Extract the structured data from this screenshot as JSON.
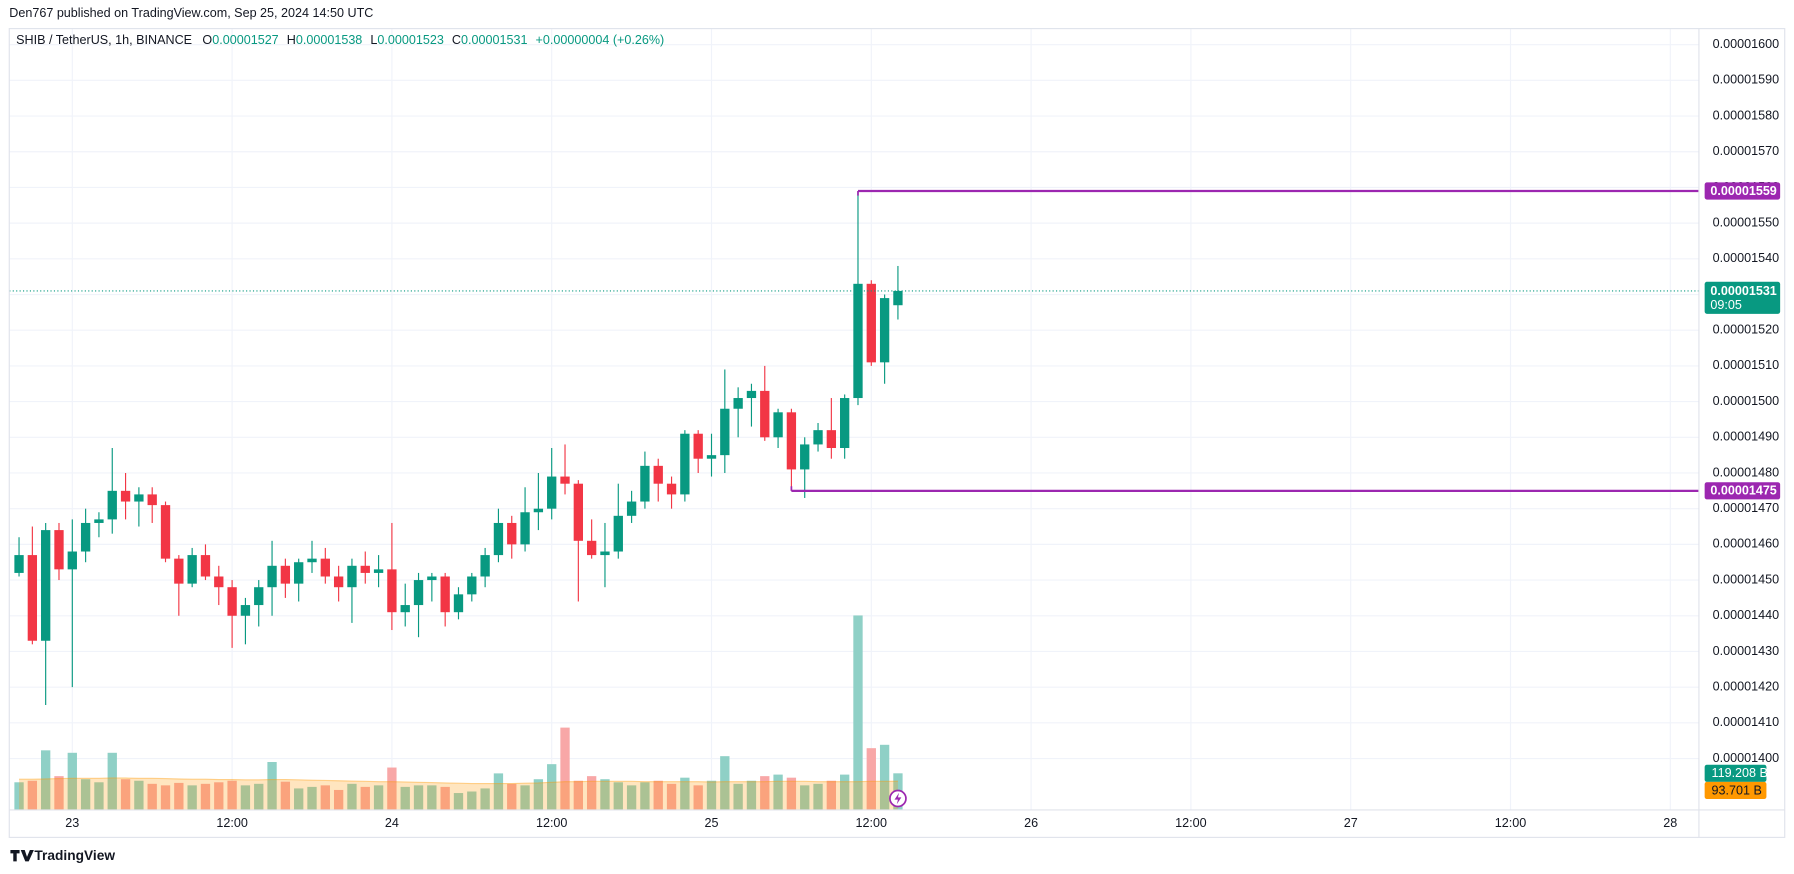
{
  "header": {
    "published": "Den767 published on TradingView.com, Sep 25, 2024 14:50 UTC",
    "symbol": "SHIB / TetherUS, 1h, BINANCE",
    "ohlc_labels": [
      "O",
      "H",
      "L",
      "C"
    ],
    "change": "+0.00000004 (+0.26%)"
  },
  "chart_data": {
    "type": "candlestick",
    "up_color": "#089981",
    "down_color": "#f23645",
    "grid": true,
    "x": [
      "2024-09-22T20:00Z",
      "2024-09-22T21:00Z",
      "2024-09-22T22:00Z",
      "2024-09-22T23:00Z",
      "2024-09-23T00:00Z",
      "2024-09-23T01:00Z",
      "2024-09-23T02:00Z",
      "2024-09-23T03:00Z",
      "2024-09-23T04:00Z",
      "2024-09-23T05:00Z",
      "2024-09-23T06:00Z",
      "2024-09-23T07:00Z",
      "2024-09-23T08:00Z",
      "2024-09-23T09:00Z",
      "2024-09-23T10:00Z",
      "2024-09-23T11:00Z",
      "2024-09-23T12:00Z",
      "2024-09-23T13:00Z",
      "2024-09-23T14:00Z",
      "2024-09-23T15:00Z",
      "2024-09-23T16:00Z",
      "2024-09-23T17:00Z",
      "2024-09-23T18:00Z",
      "2024-09-23T19:00Z",
      "2024-09-23T20:00Z",
      "2024-09-23T21:00Z",
      "2024-09-23T22:00Z",
      "2024-09-23T23:00Z",
      "2024-09-24T00:00Z",
      "2024-09-24T01:00Z",
      "2024-09-24T02:00Z",
      "2024-09-24T03:00Z",
      "2024-09-24T04:00Z",
      "2024-09-24T05:00Z",
      "2024-09-24T06:00Z",
      "2024-09-24T07:00Z",
      "2024-09-24T08:00Z",
      "2024-09-24T09:00Z",
      "2024-09-24T10:00Z",
      "2024-09-24T11:00Z",
      "2024-09-24T12:00Z",
      "2024-09-24T13:00Z",
      "2024-09-24T14:00Z",
      "2024-09-24T15:00Z",
      "2024-09-24T16:00Z",
      "2024-09-24T17:00Z",
      "2024-09-24T18:00Z",
      "2024-09-24T19:00Z",
      "2024-09-24T20:00Z",
      "2024-09-24T21:00Z",
      "2024-09-24T22:00Z",
      "2024-09-24T23:00Z",
      "2024-09-25T00:00Z",
      "2024-09-25T01:00Z",
      "2024-09-25T02:00Z",
      "2024-09-25T03:00Z",
      "2024-09-25T04:00Z",
      "2024-09-25T05:00Z",
      "2024-09-25T06:00Z",
      "2024-09-25T07:00Z",
      "2024-09-25T08:00Z",
      "2024-09-25T09:00Z",
      "2024-09-25T10:00Z",
      "2024-09-25T11:00Z",
      "2024-09-25T12:00Z",
      "2024-09-25T13:00Z",
      "2024-09-25T14:00Z"
    ],
    "open": [
      1.452e-05,
      1.457e-05,
      1.433e-05,
      1.464e-05,
      1.453e-05,
      1.458e-05,
      1.466e-05,
      1.467e-05,
      1.475e-05,
      1.472e-05,
      1.474e-05,
      1.471e-05,
      1.456e-05,
      1.449e-05,
      1.457e-05,
      1.451e-05,
      1.448e-05,
      1.44e-05,
      1.443e-05,
      1.448e-05,
      1.454e-05,
      1.449e-05,
      1.455e-05,
      1.456e-05,
      1.451e-05,
      1.448e-05,
      1.454e-05,
      1.452e-05,
      1.453e-05,
      1.441e-05,
      1.443e-05,
      1.45e-05,
      1.451e-05,
      1.441e-05,
      1.446e-05,
      1.451e-05,
      1.457e-05,
      1.466e-05,
      1.46e-05,
      1.469e-05,
      1.47e-05,
      1.479e-05,
      1.477e-05,
      1.461e-05,
      1.457e-05,
      1.458e-05,
      1.468e-05,
      1.472e-05,
      1.482e-05,
      1.477e-05,
      1.474e-05,
      1.491e-05,
      1.484e-05,
      1.485e-05,
      1.498e-05,
      1.501e-05,
      1.503e-05,
      1.49e-05,
      1.497e-05,
      1.481e-05,
      1.488e-05,
      1.492e-05,
      1.487e-05,
      1.501e-05,
      1.533e-05,
      1.511e-05,
      1.527e-05
    ],
    "high": [
      1.462e-05,
      1.465e-05,
      1.466e-05,
      1.466e-05,
      1.467e-05,
      1.47e-05,
      1.469e-05,
      1.487e-05,
      1.48e-05,
      1.476e-05,
      1.476e-05,
      1.472e-05,
      1.457e-05,
      1.459e-05,
      1.46e-05,
      1.454e-05,
      1.45e-05,
      1.445e-05,
      1.45e-05,
      1.461e-05,
      1.456e-05,
      1.456e-05,
      1.461e-05,
      1.459e-05,
      1.454e-05,
      1.456e-05,
      1.458e-05,
      1.457e-05,
      1.466e-05,
      1.449e-05,
      1.452e-05,
      1.452e-05,
      1.452e-05,
      1.448e-05,
      1.452e-05,
      1.459e-05,
      1.47e-05,
      1.468e-05,
      1.476e-05,
      1.48e-05,
      1.487e-05,
      1.488e-05,
      1.478e-05,
      1.467e-05,
      1.466e-05,
      1.477e-05,
      1.475e-05,
      1.486e-05,
      1.484e-05,
      1.479e-05,
      1.492e-05,
      1.492e-05,
      1.491e-05,
      1.509e-05,
      1.504e-05,
      1.505e-05,
      1.51e-05,
      1.498e-05,
      1.498e-05,
      1.49e-05,
      1.494e-05,
      1.501e-05,
      1.502e-05,
      1.559e-05,
      1.534e-05,
      1.53e-05,
      1.538e-05
    ],
    "low": [
      1.451e-05,
      1.432e-05,
      1.415e-05,
      1.45e-05,
      1.42e-05,
      1.455e-05,
      1.462e-05,
      1.463e-05,
      1.467e-05,
      1.465e-05,
      1.466e-05,
      1.455e-05,
      1.44e-05,
      1.448e-05,
      1.45e-05,
      1.443e-05,
      1.431e-05,
      1.432e-05,
      1.437e-05,
      1.44e-05,
      1.445e-05,
      1.444e-05,
      1.452e-05,
      1.449e-05,
      1.444e-05,
      1.438e-05,
      1.449e-05,
      1.448e-05,
      1.436e-05,
      1.437e-05,
      1.434e-05,
      1.444e-05,
      1.437e-05,
      1.439e-05,
      1.444e-05,
      1.448e-05,
      1.455e-05,
      1.456e-05,
      1.458e-05,
      1.464e-05,
      1.467e-05,
      1.474e-05,
      1.444e-05,
      1.456e-05,
      1.448e-05,
      1.456e-05,
      1.466e-05,
      1.47e-05,
      1.472e-05,
      1.47e-05,
      1.472e-05,
      1.48e-05,
      1.479e-05,
      1.48e-05,
      1.49e-05,
      1.493e-05,
      1.489e-05,
      1.487e-05,
      1.475e-05,
      1.473e-05,
      1.486e-05,
      1.484e-05,
      1.484e-05,
      1.499e-05,
      1.51e-05,
      1.505e-05,
      1.523e-05
    ],
    "close": [
      1.457e-05,
      1.433e-05,
      1.464e-05,
      1.453e-05,
      1.458e-05,
      1.466e-05,
      1.467e-05,
      1.475e-05,
      1.472e-05,
      1.474e-05,
      1.471e-05,
      1.456e-05,
      1.449e-05,
      1.457e-05,
      1.451e-05,
      1.448e-05,
      1.44e-05,
      1.443e-05,
      1.448e-05,
      1.454e-05,
      1.449e-05,
      1.455e-05,
      1.456e-05,
      1.451e-05,
      1.448e-05,
      1.454e-05,
      1.452e-05,
      1.453e-05,
      1.441e-05,
      1.443e-05,
      1.45e-05,
      1.451e-05,
      1.441e-05,
      1.446e-05,
      1.451e-05,
      1.457e-05,
      1.466e-05,
      1.46e-05,
      1.469e-05,
      1.47e-05,
      1.479e-05,
      1.477e-05,
      1.461e-05,
      1.457e-05,
      1.458e-05,
      1.468e-05,
      1.472e-05,
      1.482e-05,
      1.477e-05,
      1.474e-05,
      1.491e-05,
      1.484e-05,
      1.485e-05,
      1.498e-05,
      1.501e-05,
      1.503e-05,
      1.49e-05,
      1.497e-05,
      1.481e-05,
      1.488e-05,
      1.492e-05,
      1.487e-05,
      1.501e-05,
      1.533e-05,
      1.511e-05,
      1.529e-05,
      1.531e-05
    ],
    "xlim": [
      "2024-09-22T19:16Z",
      "2024-09-28T02:09Z"
    ],
    "xticks": [
      {
        "value": "2024-09-23T00:00Z",
        "label": "23"
      },
      {
        "value": "2024-09-23T12:00Z",
        "label": "12:00"
      },
      {
        "value": "2024-09-24T00:00Z",
        "label": "24"
      },
      {
        "value": "2024-09-24T12:00Z",
        "label": "12:00"
      },
      {
        "value": "2024-09-25T00:00Z",
        "label": "25"
      },
      {
        "value": "2024-09-25T12:00Z",
        "label": "12:00"
      },
      {
        "value": "2024-09-26T00:00Z",
        "label": "26"
      },
      {
        "value": "2024-09-26T12:00Z",
        "label": "12:00"
      },
      {
        "value": "2024-09-27T00:00Z",
        "label": "27"
      },
      {
        "value": "2024-09-27T12:00Z",
        "label": "12:00"
      },
      {
        "value": "2024-09-28T00:00Z",
        "label": "28"
      }
    ],
    "ylim": [
      1.3856e-05,
      1.6045e-05
    ],
    "yticks": [
      {
        "value": 1.4e-05,
        "label": "0.00001400"
      },
      {
        "value": 1.41e-05,
        "label": "0.00001410"
      },
      {
        "value": 1.42e-05,
        "label": "0.00001420"
      },
      {
        "value": 1.43e-05,
        "label": "0.00001430"
      },
      {
        "value": 1.44e-05,
        "label": "0.00001440"
      },
      {
        "value": 1.45e-05,
        "label": "0.00001450"
      },
      {
        "value": 1.46e-05,
        "label": "0.00001460"
      },
      {
        "value": 1.47e-05,
        "label": "0.00001470"
      },
      {
        "value": 1.48e-05,
        "label": "0.00001480"
      },
      {
        "value": 1.49e-05,
        "label": "0.00001490"
      },
      {
        "value": 1.5e-05,
        "label": "0.00001500"
      },
      {
        "value": 1.51e-05,
        "label": "0.00001510"
      },
      {
        "value": 1.52e-05,
        "label": "0.00001520"
      },
      {
        "value": 1.53e-05,
        "label": "0.00001530"
      },
      {
        "value": 1.54e-05,
        "label": "0.00001540"
      },
      {
        "value": 1.55e-05,
        "label": "0.00001550"
      },
      {
        "value": 1.56e-05,
        "label": "0.00001560"
      },
      {
        "value": 1.57e-05,
        "label": "0.00001570"
      },
      {
        "value": 1.58e-05,
        "label": "0.00001580"
      },
      {
        "value": 1.59e-05,
        "label": "0.00001590"
      },
      {
        "value": 1.6e-05,
        "label": "0.00001600"
      }
    ],
    "levels": [
      {
        "value": 1.559e-05,
        "start": "2024-09-25T11:00Z",
        "color": "#9c27b0"
      },
      {
        "value": 1.475e-05,
        "start": "2024-09-25T06:00Z",
        "color": "#9c27b0"
      }
    ],
    "countdown": "09:05",
    "volume": {
      "ylim": [
        0,
        700
      ],
      "up_color": "#8fd0c6",
      "down_color": "#f8a7a7",
      "values": [
        90,
        95,
        194,
        110,
        186,
        100,
        90,
        186,
        100,
        95,
        85,
        80,
        88,
        80,
        85,
        90,
        95,
        80,
        85,
        156,
        92,
        70,
        75,
        80,
        65,
        85,
        75,
        80,
        138,
        75,
        80,
        80,
        75,
        55,
        60,
        70,
        119,
        85,
        80,
        100,
        149,
        268,
        95,
        110,
        100,
        90,
        80,
        90,
        95,
        85,
        105,
        80,
        95,
        175,
        85,
        95,
        110,
        115,
        105,
        80,
        85,
        95,
        115,
        633,
        201,
        212,
        119.208
      ],
      "label": {
        "value": 119.208,
        "label": "119.208 B"
      },
      "ma": {
        "color": "#ff9800",
        "values": [
          100,
          100,
          101,
          102,
          103,
          103,
          103,
          104,
          104,
          103,
          103,
          102,
          101,
          100,
          100,
          99,
          99,
          98,
          98,
          99,
          99,
          98,
          97,
          96,
          95,
          94,
          93,
          92,
          92,
          91,
          90,
          89,
          88,
          87,
          86,
          86,
          86,
          86,
          87,
          88,
          90,
          92,
          92,
          93,
          93,
          93,
          93,
          92,
          92,
          92,
          92,
          92,
          91,
          92,
          92,
          92,
          92,
          93,
          93,
          93,
          92,
          92,
          92,
          92,
          93,
          93,
          93.701
        ],
        "label": {
          "value": 93.701,
          "label": "93.701 B"
        }
      }
    }
  },
  "footer": {
    "brand": "TradingView"
  }
}
